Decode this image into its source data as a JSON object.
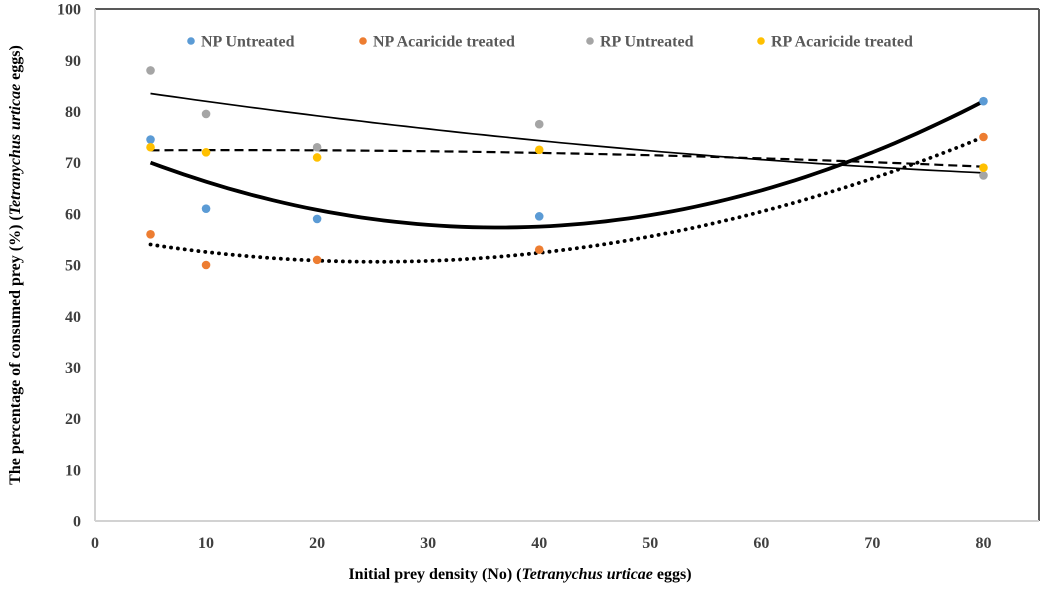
{
  "chart_data": {
    "type": "scatter",
    "title": "",
    "xlabel_parts": {
      "prefix": "Initial prey density (No) (",
      "italic": "Tetranychus urticae",
      "suffix": " eggs)"
    },
    "ylabel_parts": {
      "prefix": "The percentage of consumed prey (%) (",
      "italic": "Tetranychus urticae",
      "suffix": " eggs)"
    },
    "xlim": [
      0,
      85
    ],
    "ylim": [
      0,
      100
    ],
    "xticks": [
      0,
      10,
      20,
      30,
      40,
      50,
      60,
      70,
      80
    ],
    "yticks": [
      0,
      10,
      20,
      30,
      40,
      50,
      60,
      70,
      80,
      90,
      100
    ],
    "grid": false,
    "legend_position": "top-center",
    "x": [
      5,
      10,
      20,
      40,
      80
    ],
    "series": [
      {
        "name": "NP Untreated",
        "color": "#5B9BD5",
        "values": [
          74.5,
          61,
          59,
          59.5,
          82
        ],
        "trendline": {
          "style": "solid-thick",
          "a": 0.012928,
          "b": -0.9389,
          "c": 74.37,
          "domain": [
            5,
            80
          ]
        }
      },
      {
        "name": "NP Acaricide treated",
        "color": "#ED7D31",
        "values": [
          56,
          50,
          51,
          53,
          75
        ],
        "trendline": {
          "style": "dotted",
          "a": 0.00816,
          "b": -0.4136,
          "c": 55.864,
          "domain": [
            5,
            80
          ]
        }
      },
      {
        "name": "RP Untreated",
        "color": "#A5A5A5",
        "values": [
          88,
          79.5,
          73,
          77.5,
          67.5
        ],
        "trendline": {
          "style": "solid-thin",
          "a": 0.0014048,
          "b": -0.3261,
          "c": 85.095,
          "domain": [
            5,
            80
          ]
        }
      },
      {
        "name": "RP Acaricide treated",
        "color": "#FFC000",
        "values": [
          73,
          72,
          71,
          72.5,
          69
        ],
        "trendline": {
          "style": "dashed",
          "a": -0.00070952,
          "b": 0.01764,
          "c": 72.33,
          "domain": [
            5,
            80
          ]
        }
      }
    ],
    "trendline_color": "#000000",
    "axis_colors": {
      "left_bottom": "#d2d2d2",
      "top_right": "#595959"
    }
  }
}
